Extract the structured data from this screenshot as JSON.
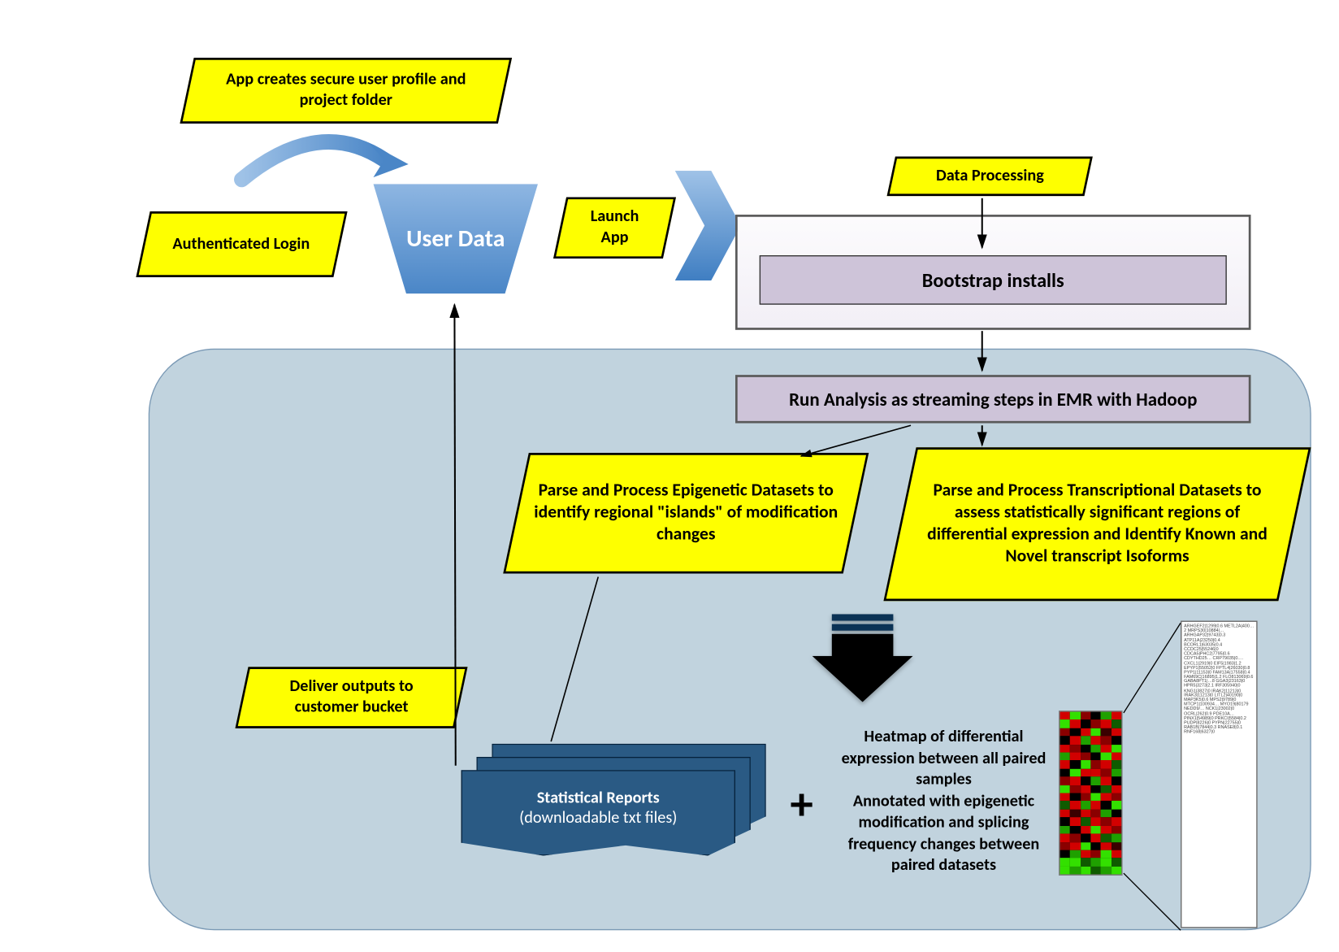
{
  "diagram": {
    "type": "flowchart",
    "background_color": "#ffffff",
    "panel_color": "#c1d3de",
    "panel_border": "#7a99b5",
    "callout_fill": "#feff00",
    "callout_border": "#000000",
    "process_fill": "#cec4d9",
    "process_border": "#5a5a5a",
    "funnel_gradient": [
      "#8eb6e2",
      "#4a86c7"
    ],
    "chevron_gradient": [
      "#9fc2e7",
      "#3f7ec2"
    ],
    "report_fill": "#2a5a84",
    "arrow_color": "#000000",
    "font_family": "Calibri",
    "heatmap_palette": [
      "#d20000",
      "#8a0000",
      "#3a0000",
      "#000000",
      "#0f5b00",
      "#1fa000",
      "#33e000"
    ]
  },
  "nodes": {
    "authLogin": "Authenticated Login",
    "profileNote": "App creates secure user profile and project folder",
    "userData": "User Data",
    "launchApp": "Launch App",
    "dataProcessing": "Data Processing",
    "bootstrap": "Bootstrap installs",
    "runAnalysis": "Run Analysis as streaming steps in EMR with Hadoop",
    "epigenetic": "Parse and Process Epigenetic Datasets to identify regional \"islands\" of modification changes",
    "transcriptional": "Parse and Process Transcriptional Datasets to assess statistically significant regions of differential expression and Identify Known and Novel transcript Isoforms",
    "deliver": "Deliver outputs to customer bucket",
    "reportsTitle": "Statistical Reports",
    "reportsSub": "(downloadable txt files)",
    "plus": "+",
    "heatmapDesc": "Heatmap of differential expression between all paired samples\nAnnotated with epigenetic modification and splicing frequency changes between paired datasets"
  },
  "heatmap_rows": [
    [
      "#d20000",
      "#33e000",
      "#8a0000",
      "#000000",
      "#1fa000",
      "#d20000"
    ],
    [
      "#33e000",
      "#d20000",
      "#000000",
      "#8a0000",
      "#d20000",
      "#0f5b00"
    ],
    [
      "#8a0000",
      "#000000",
      "#d20000",
      "#33e000",
      "#3a0000",
      "#d20000"
    ],
    [
      "#000000",
      "#d20000",
      "#1fa000",
      "#d20000",
      "#8a0000",
      "#000000"
    ],
    [
      "#d20000",
      "#8a0000",
      "#000000",
      "#1fa000",
      "#d20000",
      "#33e000"
    ],
    [
      "#1fa000",
      "#d20000",
      "#8a0000",
      "#000000",
      "#33e000",
      "#d20000"
    ],
    [
      "#d20000",
      "#000000",
      "#33e000",
      "#8a0000",
      "#d20000",
      "#0f5b00"
    ],
    [
      "#000000",
      "#33e000",
      "#d20000",
      "#d20000",
      "#8a0000",
      "#1fa000"
    ],
    [
      "#8a0000",
      "#d20000",
      "#000000",
      "#1fa000",
      "#d20000",
      "#000000"
    ],
    [
      "#33e000",
      "#8a0000",
      "#d20000",
      "#000000",
      "#0f5b00",
      "#d20000"
    ],
    [
      "#d20000",
      "#000000",
      "#8a0000",
      "#33e000",
      "#d20000",
      "#8a0000"
    ],
    [
      "#0f5b00",
      "#d20000",
      "#1fa000",
      "#d20000",
      "#000000",
      "#33e000"
    ],
    [
      "#d20000",
      "#3a0000",
      "#d20000",
      "#8a0000",
      "#1fa000",
      "#000000"
    ],
    [
      "#000000",
      "#d20000",
      "#0f5b00",
      "#d20000",
      "#8a0000",
      "#d20000"
    ],
    [
      "#1fa000",
      "#000000",
      "#d20000",
      "#33e000",
      "#d20000",
      "#8a0000"
    ],
    [
      "#d20000",
      "#8a0000",
      "#000000",
      "#d20000",
      "#0f5b00",
      "#1fa000"
    ],
    [
      "#8a0000",
      "#d20000",
      "#33e000",
      "#000000",
      "#d20000",
      "#3a0000"
    ],
    [
      "#000000",
      "#1fa000",
      "#d20000",
      "#8a0000",
      "#33e000",
      "#d20000"
    ],
    [
      "#33e000",
      "#33e000",
      "#0f5b00",
      "#1fa000",
      "#33e000",
      "#0f5b00"
    ],
    [
      "#33e000",
      "#1fa000",
      "#33e000",
      "#0f5b00",
      "#1fa000",
      "#33e000"
    ]
  ],
  "gene_list": "ARHGEF2|1299|0.6\nMETL2A|400…2\nMRPS30|10884|…\nARHGAP32|9743|0.3\nATP11A|23250|0.4\nBCORL1|63035|0.4\nCCDC25|55246|0\nCDCA5|PHC2|7795|0.6\nCDYTHD25…\nCRP79035|0.…\nCXCL1|2919|0\nEIF5|1983|1.2\nEPYP1|55052|0\nFPTL4|26030|0.8\nPYP1|11153|0\nFAM13A|17558|0.4\nFAM69C|16895|1.2\nFLO813069|0.6\nGABA8PT1|…8\nGGA3|23163|0\nHPR5|3273|2.1\nIRF305940|0\nKNG1|3827|0\nIRAK2|11213|0\nIRAK3|11213|0\nLITL2|40190|0\nMAP3K5|0.6\nMPS2|9789|0\nMTCP1|100934…\nMYO19|80179\nNEDD9/…\nNCK1|23002|0\nOCRL|262|0.9\nPDE10A…\nPINX1|54989|0\nPRKCI|5584|0.2\nPUDP|8226|0\nPYPN|22755|0\nRAB1B|7844|0.3\nRNASE8|0.1\nRNF168|6327|0"
}
